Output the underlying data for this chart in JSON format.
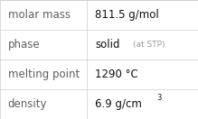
{
  "rows": [
    {
      "label": "molar mass",
      "value": "811.5 g/mol",
      "type": "plain"
    },
    {
      "label": "phase",
      "value": "solid",
      "suffix": "(at STP)",
      "type": "suffix"
    },
    {
      "label": "melting point",
      "value": "1290 °C",
      "type": "plain"
    },
    {
      "label": "density",
      "value": "6.9 g/cm",
      "superscript": "3",
      "type": "super"
    }
  ],
  "bg_color": "#ffffff",
  "line_color": "#cccccc",
  "label_color": "#606060",
  "value_color": "#111111",
  "suffix_color": "#999999",
  "label_fontsize": 8.5,
  "value_fontsize": 8.5,
  "suffix_fontsize": 6.5,
  "super_fontsize": 6.0,
  "col_split": 0.44
}
